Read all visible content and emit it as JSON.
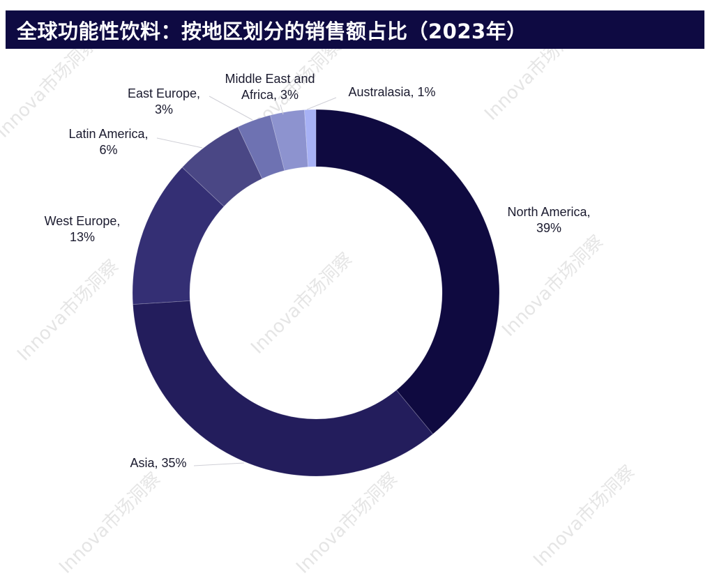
{
  "title": "全球功能性饮料：按地区划分的销售额占比（2023年）",
  "watermark_text": "Innova市场洞察",
  "colors": {
    "title_bg": "#0e0a42",
    "title_fg": "#ffffff"
  },
  "chart_data": {
    "type": "pie",
    "subtype": "donut",
    "title": "全球功能性饮料：按地区划分的销售额占比（2023年）",
    "categories": [
      "North America",
      "Asia",
      "West Europe",
      "Latin America",
      "East Europe",
      "Middle East and Africa",
      "Australasia"
    ],
    "values": [
      39,
      35,
      13,
      6,
      3,
      3,
      1
    ],
    "unit": "%",
    "start_angle_deg": 0,
    "direction": "clockwise",
    "colors": [
      "#0f0a40",
      "#231d5c",
      "#342f74",
      "#4a4785",
      "#6e72b2",
      "#8d93cf",
      "#a7b1f5"
    ],
    "labels": [
      "North America, 39%",
      "Asia, 35%",
      "West Europe, 13%",
      "Latin America, 6%",
      "East Europe, 3%",
      "Middle East and Africa, 3%",
      "Australasia, 1%"
    ],
    "legend": "none (data labels with leader lines)"
  },
  "labels": {
    "north_america": {
      "line1": "North America,",
      "line2": "39%"
    },
    "asia": {
      "line1": "Asia, 35%"
    },
    "west_europe": {
      "line1": "West Europe,",
      "line2": "13%"
    },
    "latin_america": {
      "line1": "Latin America,",
      "line2": "6%"
    },
    "east_europe": {
      "line1": "East Europe,",
      "line2": "3%"
    },
    "mea": {
      "line1": "Middle East and",
      "line2": "Africa, 3%"
    },
    "australasia": {
      "line1": "Australasia, 1%"
    }
  }
}
